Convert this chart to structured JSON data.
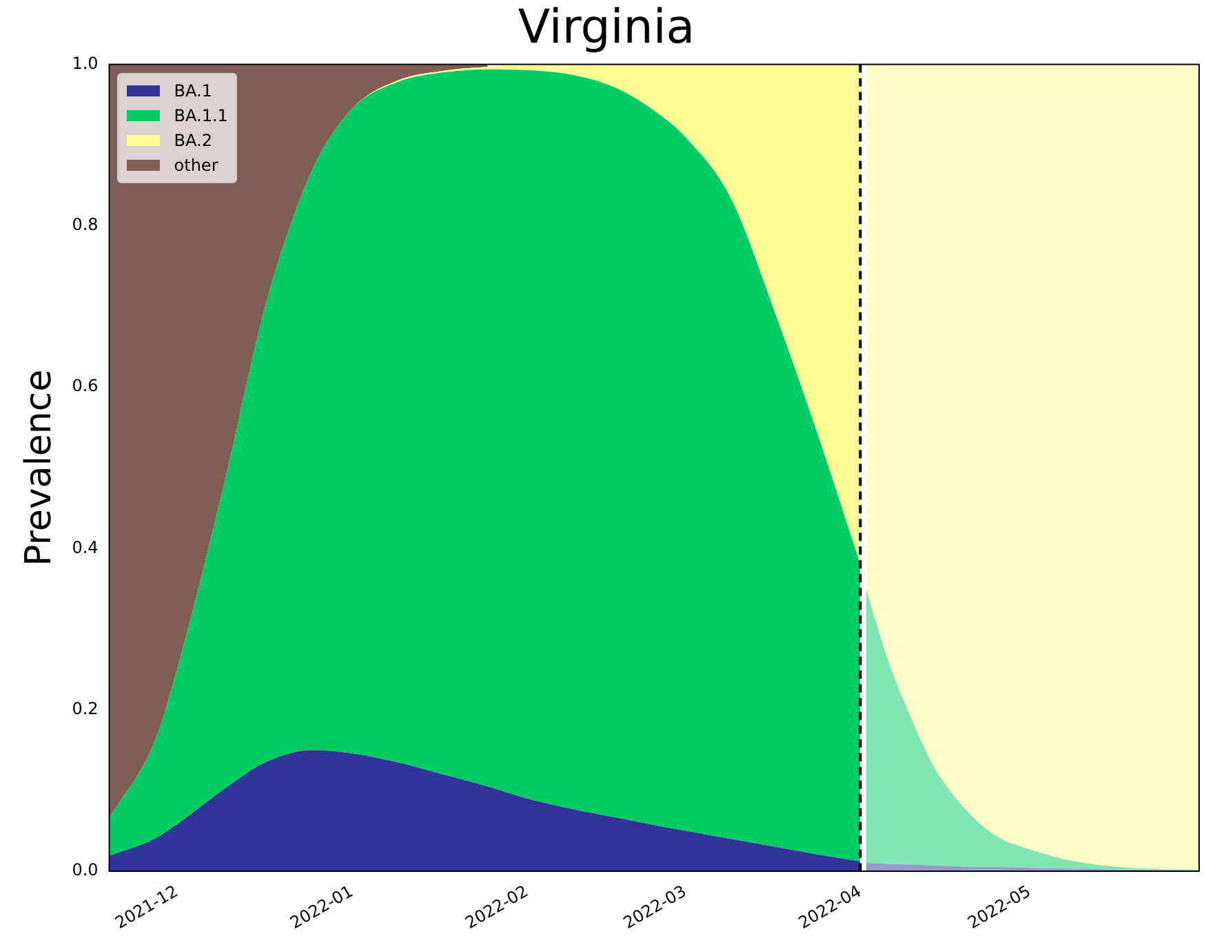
{
  "chart_data": {
    "type": "area",
    "title": "Virginia",
    "ylabel": "Prevalence",
    "stacked": true,
    "x": [
      "2021-11-19",
      "2021-11-27",
      "2021-12-01",
      "2021-12-09",
      "2021-12-17",
      "2021-12-25",
      "2022-01-01",
      "2022-01-09",
      "2022-01-17",
      "2022-01-25",
      "2022-02-01",
      "2022-02-09",
      "2022-02-17",
      "2022-02-25",
      "2022-03-01",
      "2022-03-09",
      "2022-03-17",
      "2022-03-25",
      "2022-04-01",
      "2022-04-02",
      "2022-04-06",
      "2022-04-10",
      "2022-04-14",
      "2022-04-18",
      "2022-04-22",
      "2022-04-26",
      "2022-05-01",
      "2022-05-09",
      "2022-05-17",
      "2022-05-29",
      "2022-05-31"
    ],
    "series": [
      {
        "name": "BA.1",
        "color": "#333399",
        "values": [
          0.019,
          0.04,
          0.058,
          0.1,
          0.136,
          0.15,
          0.146,
          0.135,
          0.12,
          0.105,
          0.09,
          0.077,
          0.066,
          0.055,
          0.05,
          0.04,
          0.03,
          0.02,
          0.012,
          null,
          null,
          null,
          null,
          null,
          null,
          null,
          null,
          null,
          null,
          null,
          null
        ]
      },
      {
        "name": "BA.1.1",
        "color": "#00cc66",
        "values": [
          0.047,
          0.12,
          0.192,
          0.37,
          0.574,
          0.72,
          0.799,
          0.843,
          0.87,
          0.889,
          0.903,
          0.91,
          0.904,
          0.88,
          0.86,
          0.795,
          0.66,
          0.51,
          0.368,
          null,
          null,
          null,
          null,
          null,
          null,
          null,
          null,
          null,
          null,
          null,
          null
        ]
      },
      {
        "name": "BA.2",
        "color": "#fdfb96",
        "values": [
          0,
          0,
          0,
          0,
          0,
          0,
          0,
          0.002,
          0.002,
          0.003,
          0.007,
          0.013,
          0.03,
          0.065,
          0.09,
          0.165,
          0.31,
          0.47,
          0.62,
          null,
          null,
          null,
          null,
          null,
          null,
          null,
          null,
          null,
          null,
          null,
          null
        ]
      },
      {
        "name": "other",
        "color": "#7f5f55",
        "values": [
          0.934,
          0.84,
          0.75,
          0.53,
          0.29,
          0.13,
          0.055,
          0.02,
          0.008,
          0.003,
          null,
          null,
          null,
          null,
          null,
          null,
          null,
          null,
          null,
          null,
          null,
          null,
          null,
          null,
          null,
          null,
          null,
          null,
          null,
          null,
          null
        ]
      },
      {
        "color": "#9999cc",
        "values": [
          null,
          null,
          null,
          null,
          null,
          null,
          null,
          null,
          null,
          null,
          null,
          null,
          null,
          null,
          null,
          null,
          null,
          null,
          null,
          0.01,
          0.009,
          0.008,
          0.007,
          0.006,
          0.005,
          0.005,
          0.004,
          0.003,
          0.002,
          0.001,
          0.001
        ]
      },
      {
        "color": "#80e6b3",
        "values": [
          null,
          null,
          null,
          null,
          null,
          null,
          null,
          null,
          null,
          null,
          null,
          null,
          null,
          null,
          null,
          null,
          null,
          null,
          null,
          0.34,
          0.251,
          0.182,
          0.123,
          0.084,
          0.055,
          0.035,
          0.023,
          0.009,
          0.003,
          0.001,
          0.001
        ]
      },
      {
        "color": "#fefdca",
        "values": [
          null,
          null,
          null,
          null,
          null,
          null,
          null,
          null,
          null,
          null,
          null,
          null,
          null,
          null,
          null,
          null,
          null,
          null,
          null,
          0.65,
          0.74,
          0.81,
          0.87,
          0.91,
          0.94,
          0.96,
          0.973,
          0.988,
          0.995,
          0.998,
          0.998
        ]
      }
    ],
    "xlim": [
      "2021-11-19",
      "2022-05-31"
    ],
    "xticks": [
      {
        "value": "2021-12-01",
        "label": "2021-12"
      },
      {
        "value": "2022-01-01",
        "label": "2022-01"
      },
      {
        "value": "2022-02-01",
        "label": "2022-02"
      },
      {
        "value": "2022-03-01",
        "label": "2022-03"
      },
      {
        "value": "2022-04-01",
        "label": "2022-04"
      },
      {
        "value": "2022-05-01",
        "label": "2022-05"
      }
    ],
    "ylim": [
      0,
      1
    ],
    "yticks": [
      {
        "value": 0,
        "label": "0.0"
      },
      {
        "value": 0.2,
        "label": "0.2"
      },
      {
        "value": 0.4,
        "label": "0.4"
      },
      {
        "value": 0.6,
        "label": "0.6"
      },
      {
        "value": 0.8,
        "label": "0.8"
      },
      {
        "value": 1,
        "label": "1.0"
      }
    ],
    "ref_lines": [
      {
        "axis": "x",
        "value": "2022-04-01",
        "color": "#000000",
        "line_style": "dashed"
      }
    ],
    "grid": false,
    "legend": "top left"
  }
}
